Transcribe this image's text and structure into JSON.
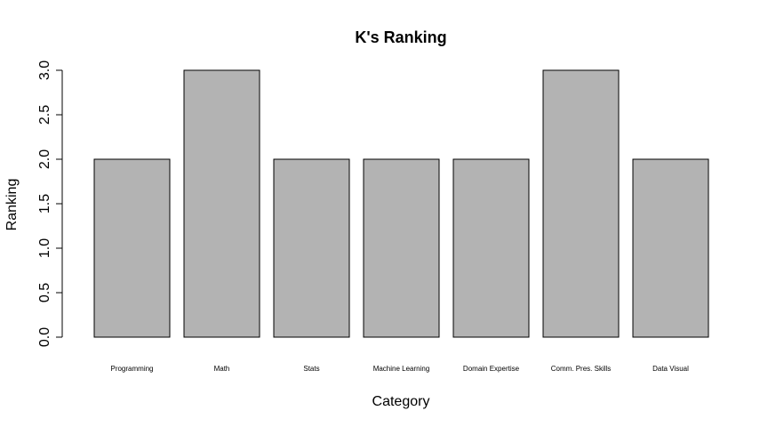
{
  "chart_data": {
    "type": "bar",
    "title": "K's Ranking",
    "xlabel": "Category",
    "ylabel": "Ranking",
    "categories": [
      "Programming",
      "Math",
      "Stats",
      "Machine Learning",
      "Domain Expertise",
      "Comm. Pres. Skills",
      "Data Visual"
    ],
    "values": [
      2,
      3,
      2,
      2,
      2,
      3,
      2
    ],
    "ylim": [
      0,
      3
    ],
    "yticks": [
      "0.0",
      "0.5",
      "1.0",
      "1.5",
      "2.0",
      "2.5",
      "3.0"
    ],
    "grid": false,
    "bar_color": "#b3b3b3",
    "bar_edge_color": "#000000"
  }
}
